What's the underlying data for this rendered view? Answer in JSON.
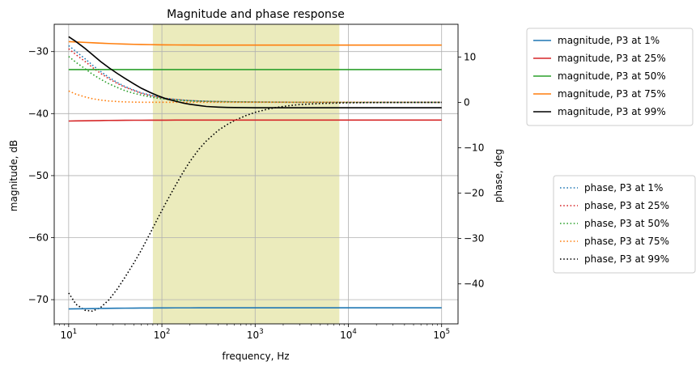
{
  "chart_data": {
    "type": "line",
    "title": "Magnitude and phase response",
    "xlabel": "frequency, Hz",
    "ylabel_left": "magnitude, dB",
    "ylabel_right": "phase, deg",
    "xscale": "log",
    "xlim": [
      7,
      150000
    ],
    "ylim_left": [
      -73.9,
      -25.6
    ],
    "ylim_right": [
      -48.8,
      17.2
    ],
    "grid": true,
    "x_ticks": [
      {
        "value": 10,
        "base": "10",
        "exp": "1"
      },
      {
        "value": 100,
        "base": "10",
        "exp": "2"
      },
      {
        "value": 1000,
        "base": "10",
        "exp": "3"
      },
      {
        "value": 10000,
        "base": "10",
        "exp": "4"
      },
      {
        "value": 100000,
        "base": "10",
        "exp": "5"
      }
    ],
    "y_ticks_left": [
      -30,
      -40,
      -50,
      -60,
      -70
    ],
    "y_ticks_left_labels": [
      "−30",
      "−40",
      "−50",
      "−60",
      "−70"
    ],
    "y_ticks_right": [
      10,
      0,
      -10,
      -20,
      -30,
      -40
    ],
    "y_ticks_right_labels": [
      "10",
      "0",
      "−10",
      "−20",
      "−30",
      "−40"
    ],
    "shaded_band": {
      "x_start": 80,
      "x_end": 8000,
      "color": "#bcbd22",
      "opacity": 0.3
    },
    "freq": [
      10,
      12,
      15,
      18,
      22,
      27,
      33,
      40,
      50,
      60,
      75,
      90,
      110,
      140,
      170,
      200,
      250,
      300,
      400,
      500,
      600,
      800,
      1000,
      1300,
      1600,
      2000,
      2500,
      3000,
      4000,
      5000,
      6000,
      8000,
      10000,
      15000,
      20000,
      30000,
      50000,
      70000,
      100000
    ],
    "magnitude_series": [
      {
        "name": "magnitude, P3 at 1%",
        "color": "#1f77b4",
        "values": [
          -71.5,
          -71.48,
          -71.46,
          -71.44,
          -71.42,
          -71.4,
          -71.38,
          -71.37,
          -71.36,
          -71.35,
          -71.34,
          -71.33,
          -71.33,
          -71.32,
          -71.32,
          -71.32,
          -71.31,
          -71.31,
          -71.31,
          -71.31,
          -71.31,
          -71.31,
          -71.31,
          -71.31,
          -71.31,
          -71.31,
          -71.31,
          -71.31,
          -71.31,
          -71.31,
          -71.31,
          -71.31,
          -71.31,
          -71.31,
          -71.31,
          -71.31,
          -71.31,
          -71.31,
          -71.31
        ]
      },
      {
        "name": "magnitude, P3 at 25%",
        "color": "#d62728",
        "values": [
          -41.2,
          -41.18,
          -41.16,
          -41.14,
          -41.12,
          -41.1,
          -41.09,
          -41.08,
          -41.07,
          -41.07,
          -41.06,
          -41.06,
          -41.06,
          -41.05,
          -41.05,
          -41.05,
          -41.05,
          -41.05,
          -41.05,
          -41.05,
          -41.05,
          -41.05,
          -41.05,
          -41.05,
          -41.05,
          -41.05,
          -41.05,
          -41.05,
          -41.05,
          -41.05,
          -41.05,
          -41.05,
          -41.05,
          -41.05,
          -41.05,
          -41.05,
          -41.05,
          -41.05,
          -41.05
        ]
      },
      {
        "name": "magnitude, P3 at 50%",
        "color": "#2ca02c",
        "values": [
          -32.9,
          -32.9,
          -32.9,
          -32.9,
          -32.9,
          -32.9,
          -32.9,
          -32.9,
          -32.9,
          -32.9,
          -32.9,
          -32.9,
          -32.9,
          -32.9,
          -32.9,
          -32.9,
          -32.9,
          -32.9,
          -32.9,
          -32.9,
          -32.9,
          -32.9,
          -32.9,
          -32.9,
          -32.9,
          -32.9,
          -32.9,
          -32.9,
          -32.9,
          -32.9,
          -32.9,
          -32.9,
          -32.9,
          -32.9,
          -32.9,
          -32.9,
          -32.9,
          -32.9,
          -32.9
        ]
      },
      {
        "name": "magnitude, P3 at 75%",
        "color": "#ff7f0e",
        "values": [
          -28.4,
          -28.45,
          -28.52,
          -28.58,
          -28.64,
          -28.7,
          -28.75,
          -28.79,
          -28.83,
          -28.86,
          -28.88,
          -28.9,
          -28.92,
          -28.93,
          -28.94,
          -28.94,
          -28.95,
          -28.95,
          -28.95,
          -28.95,
          -28.95,
          -28.95,
          -28.95,
          -28.95,
          -28.95,
          -28.95,
          -28.95,
          -28.95,
          -28.95,
          -28.95,
          -28.95,
          -28.95,
          -28.95,
          -28.95,
          -28.95,
          -28.95,
          -28.95,
          -28.95,
          -28.95
        ]
      },
      {
        "name": "magnitude, P3 at 99%",
        "color": "#000000",
        "values": [
          -27.6,
          -28.4,
          -29.5,
          -30.5,
          -31.6,
          -32.6,
          -33.5,
          -34.3,
          -35.2,
          -35.9,
          -36.6,
          -37.1,
          -37.6,
          -38.0,
          -38.3,
          -38.5,
          -38.7,
          -38.85,
          -38.95,
          -39.0,
          -39.02,
          -39.04,
          -39.05,
          -39.05,
          -39.05,
          -39.05,
          -39.05,
          -39.05,
          -39.05,
          -39.05,
          -39.05,
          -39.05,
          -39.05,
          -39.05,
          -39.05,
          -39.05,
          -39.05,
          -39.05,
          -39.05
        ]
      }
    ],
    "phase_series": [
      {
        "name": "phase, P3 at 1%",
        "color": "#1f77b4",
        "values": [
          12.5,
          11.2,
          9.6,
          8.2,
          6.8,
          5.5,
          4.4,
          3.5,
          2.7,
          2.1,
          1.6,
          1.2,
          0.9,
          0.65,
          0.5,
          0.4,
          0.3,
          0.25,
          0.18,
          0.15,
          0.12,
          0.1,
          0.08,
          0.06,
          0.05,
          0.04,
          0.03,
          0.02,
          0.02,
          0.01,
          0.01,
          0.01,
          0.01,
          0.0,
          0.0,
          0.0,
          0.0,
          0.0,
          0.0
        ]
      },
      {
        "name": "phase, P3 at 25%",
        "color": "#d62728",
        "values": [
          11.8,
          10.5,
          9.0,
          7.7,
          6.4,
          5.2,
          4.2,
          3.35,
          2.6,
          2.0,
          1.5,
          1.15,
          0.85,
          0.62,
          0.48,
          0.38,
          0.29,
          0.23,
          0.17,
          0.14,
          0.11,
          0.09,
          0.07,
          0.06,
          0.05,
          0.04,
          0.03,
          0.02,
          0.02,
          0.01,
          0.01,
          0.01,
          0.01,
          0.0,
          0.0,
          0.0,
          0.0,
          0.0,
          0.0
        ]
      },
      {
        "name": "phase, P3 at 50%",
        "color": "#2ca02c",
        "values": [
          10.1,
          8.8,
          7.4,
          6.2,
          5.1,
          4.1,
          3.3,
          2.6,
          2.0,
          1.6,
          1.2,
          0.9,
          0.7,
          0.5,
          0.4,
          0.32,
          0.25,
          0.2,
          0.15,
          0.12,
          0.1,
          0.08,
          0.06,
          0.05,
          0.04,
          0.03,
          0.02,
          0.02,
          0.01,
          0.01,
          0.01,
          0.01,
          0.0,
          0.0,
          0.0,
          0.0,
          0.0,
          0.0,
          0.0
        ]
      },
      {
        "name": "phase, P3 at 75%",
        "color": "#ff7f0e",
        "values": [
          2.5,
          1.8,
          1.2,
          0.8,
          0.5,
          0.3,
          0.18,
          0.1,
          0.05,
          0.03,
          0.02,
          0.02,
          0.02,
          0.02,
          0.02,
          0.02,
          0.02,
          0.02,
          0.02,
          0.02,
          0.02,
          0.02,
          0.02,
          0.02,
          0.02,
          0.02,
          0.02,
          0.02,
          0.02,
          0.02,
          0.02,
          0.02,
          0.02,
          0.02,
          0.02,
          0.02,
          0.02,
          0.02,
          0.02
        ]
      },
      {
        "name": "phase, P3 at 99%",
        "color": "#000000",
        "values": [
          -42.0,
          -44.5,
          -45.8,
          -46.0,
          -45.2,
          -43.5,
          -41.2,
          -38.6,
          -35.4,
          -32.6,
          -28.8,
          -25.6,
          -22.2,
          -18.3,
          -15.3,
          -13.0,
          -10.3,
          -8.5,
          -6.2,
          -4.9,
          -4.0,
          -2.9,
          -2.2,
          -1.6,
          -1.2,
          -0.9,
          -0.65,
          -0.5,
          -0.35,
          -0.25,
          -0.2,
          -0.14,
          -0.1,
          -0.06,
          -0.04,
          -0.02,
          -0.01,
          -0.01,
          0.0
        ]
      }
    ]
  }
}
